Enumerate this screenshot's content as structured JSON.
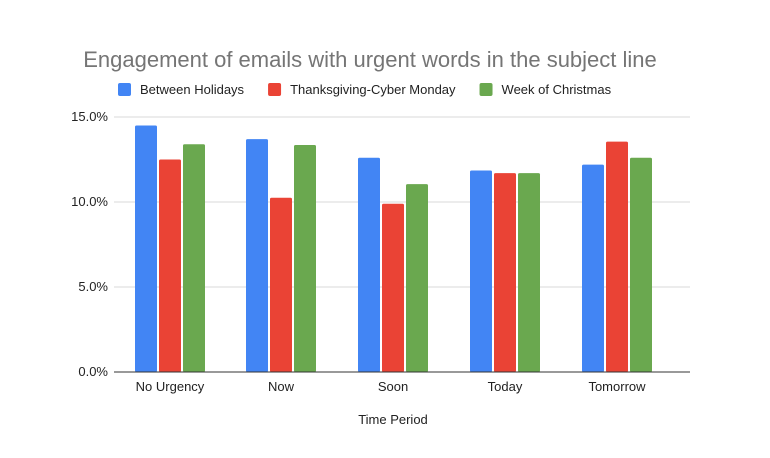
{
  "chart_data": {
    "type": "bar",
    "title": "Engagement of emails with urgent words in the subject line",
    "xlabel": "Time Period",
    "ylabel": "",
    "categories": [
      "No Urgency",
      "Now",
      "Soon",
      "Today",
      "Tomorrow"
    ],
    "series": [
      {
        "name": "Between Holidays",
        "color": "#4285f4",
        "values": [
          14.5,
          13.7,
          12.6,
          11.85,
          12.2
        ]
      },
      {
        "name": "Thanksgiving-Cyber Monday",
        "color": "#ea4335",
        "values": [
          12.5,
          10.25,
          9.9,
          11.7,
          13.55
        ]
      },
      {
        "name": "Week of Christmas",
        "color": "#6aa84f",
        "values": [
          13.4,
          13.35,
          11.05,
          11.7,
          12.6
        ]
      }
    ],
    "ylim": [
      0,
      15
    ],
    "yticks": [
      0,
      5,
      10,
      15
    ],
    "ytick_labels": [
      "0.0%",
      "5.0%",
      "10.0%",
      "15.0%"
    ],
    "grid": true,
    "legend_position": "top-center"
  }
}
